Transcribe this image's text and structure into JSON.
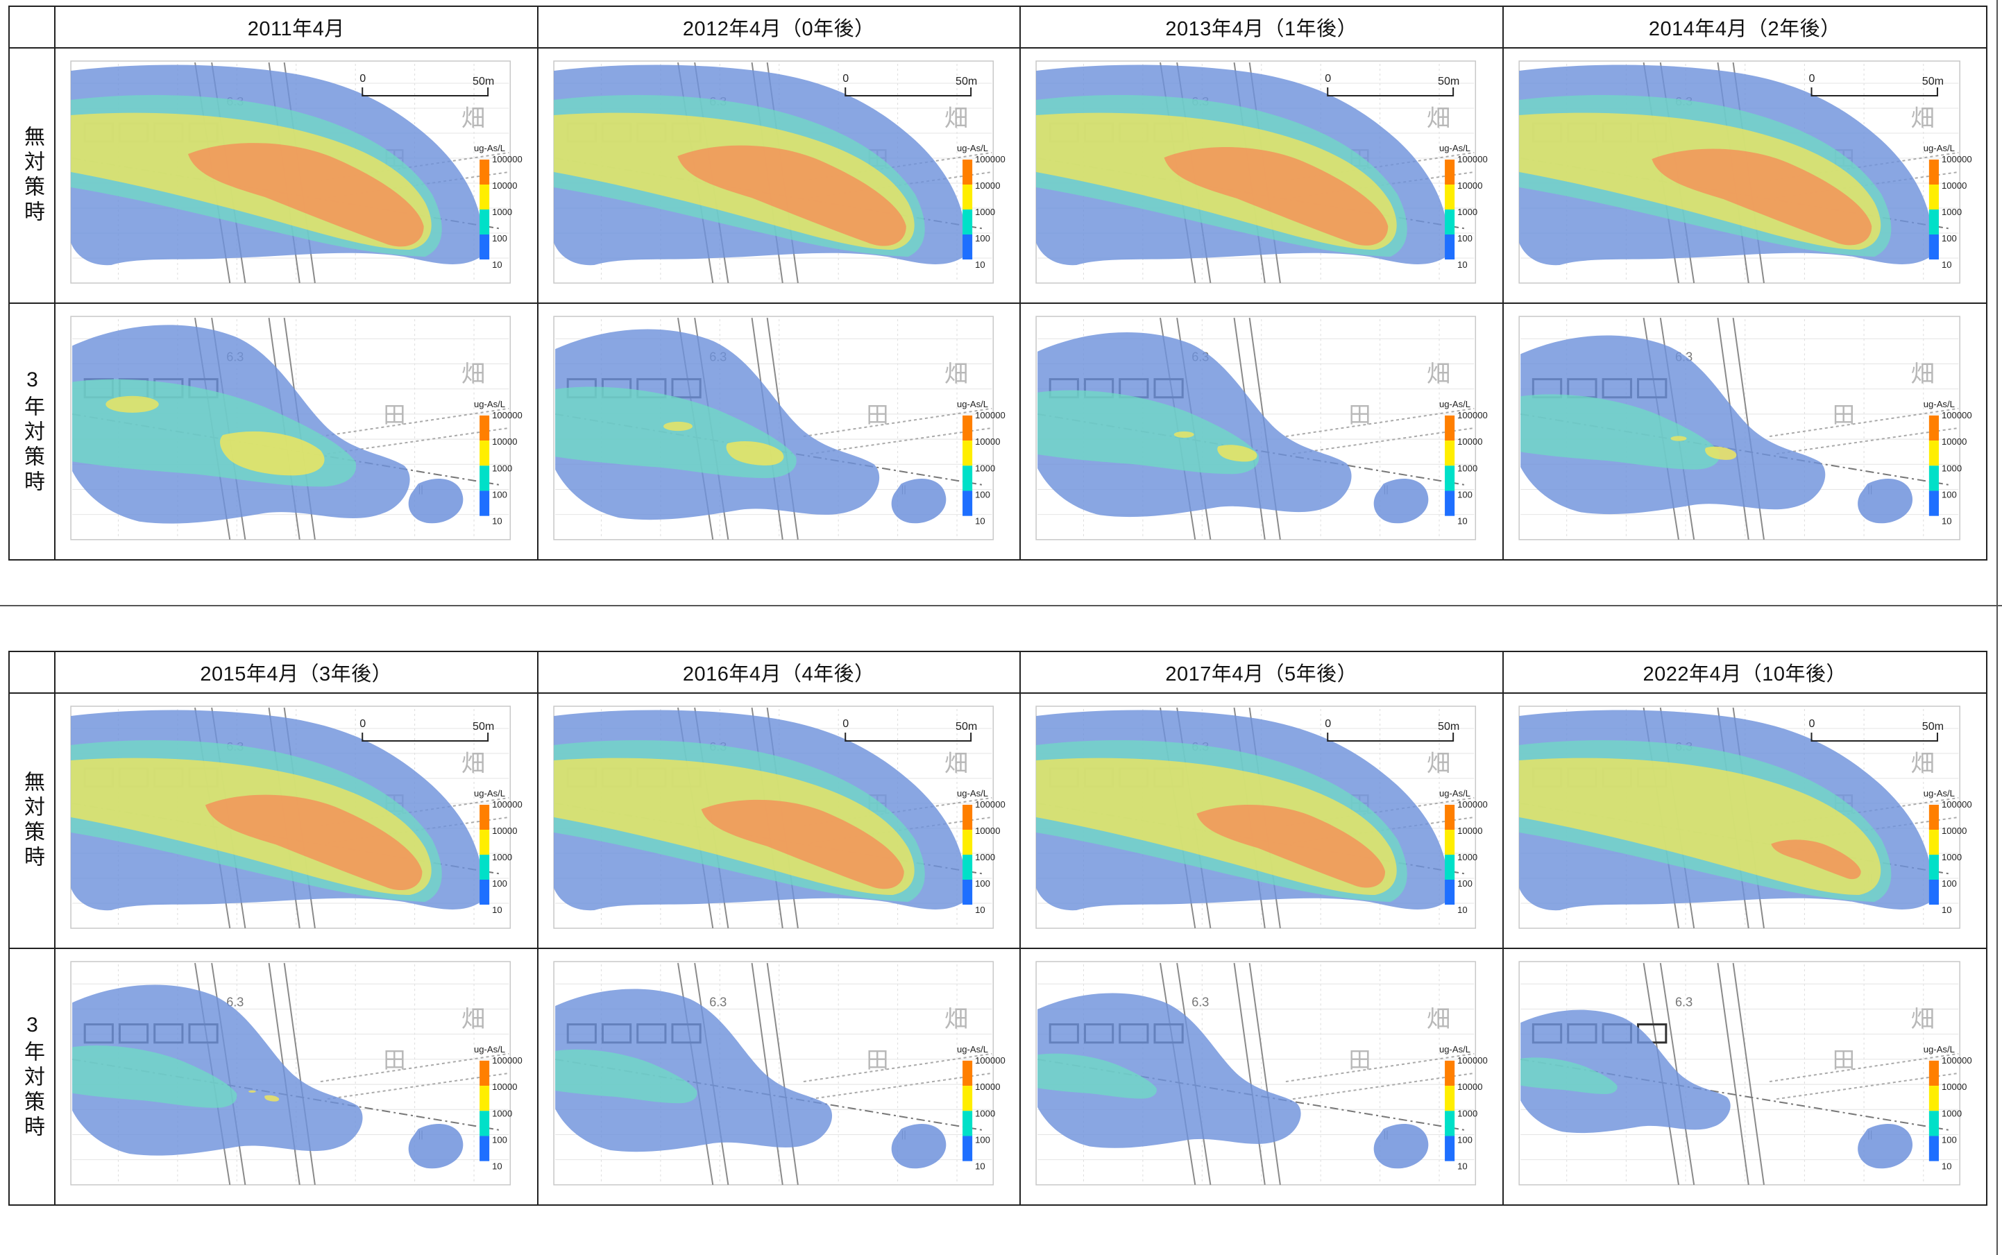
{
  "colors": {
    "level_10000": "#f2945a",
    "level_1000": "#f0e65c",
    "level_100": "#6fdcc4",
    "level_10": "#6f92dc",
    "legend": [
      "#ff7f00",
      "#ffee00",
      "#00e0c8",
      "#1e6fff"
    ]
  },
  "row_labels": {
    "no_measure": "無対策時",
    "measure_3y": "3年対策時"
  },
  "map_labels": {
    "scale_zero": "0",
    "scale_end": "50m",
    "road": "6.3",
    "field_1": "畑",
    "field_2": "田",
    "ditch": "||"
  },
  "legend": {
    "unit": "ug-As/L",
    "ticks": [
      "100000",
      "10000",
      "1000",
      "100",
      "10"
    ]
  },
  "tables": [
    {
      "headers": [
        "2011年4月",
        "2012年4月（0年後）",
        "2013年4月（1年後）",
        "2014年4月（2年後）"
      ],
      "no_measure_panels": [
        {
          "red_scale": 1.0
        },
        {
          "red_scale": 0.97
        },
        {
          "red_scale": 0.95
        },
        {
          "red_scale": 0.93
        }
      ],
      "measure_panels": [
        {
          "yellow_scale": 1.0,
          "cyan_scale": 1.0,
          "blue_scale": 1.0,
          "spot": true
        },
        {
          "yellow_scale": 0.55,
          "cyan_scale": 0.85,
          "blue_scale": 0.96,
          "spot": true
        },
        {
          "yellow_scale": 0.38,
          "cyan_scale": 0.78,
          "blue_scale": 0.93,
          "spot": true
        },
        {
          "yellow_scale": 0.3,
          "cyan_scale": 0.7,
          "blue_scale": 0.9,
          "spot": true
        }
      ]
    },
    {
      "headers": [
        "2015年4月（3年後）",
        "2016年4月（4年後）",
        "2017年4月（5年後）",
        "2022年4月（10年後）"
      ],
      "no_measure_panels": [
        {
          "red_scale": 0.92
        },
        {
          "red_scale": 0.86
        },
        {
          "red_scale": 0.8
        },
        {
          "red_scale": 0.38
        }
      ],
      "measure_panels": [
        {
          "yellow_scale": 0.14,
          "cyan_scale": 0.58,
          "blue_scale": 0.86,
          "spot": true
        },
        {
          "yellow_scale": 0.0,
          "cyan_scale": 0.5,
          "blue_scale": 0.82,
          "spot": true
        },
        {
          "yellow_scale": 0.0,
          "cyan_scale": 0.42,
          "blue_scale": 0.78,
          "spot": true
        },
        {
          "yellow_scale": 0.0,
          "cyan_scale": 0.34,
          "blue_scale": 0.62,
          "spot": true
        }
      ]
    }
  ]
}
